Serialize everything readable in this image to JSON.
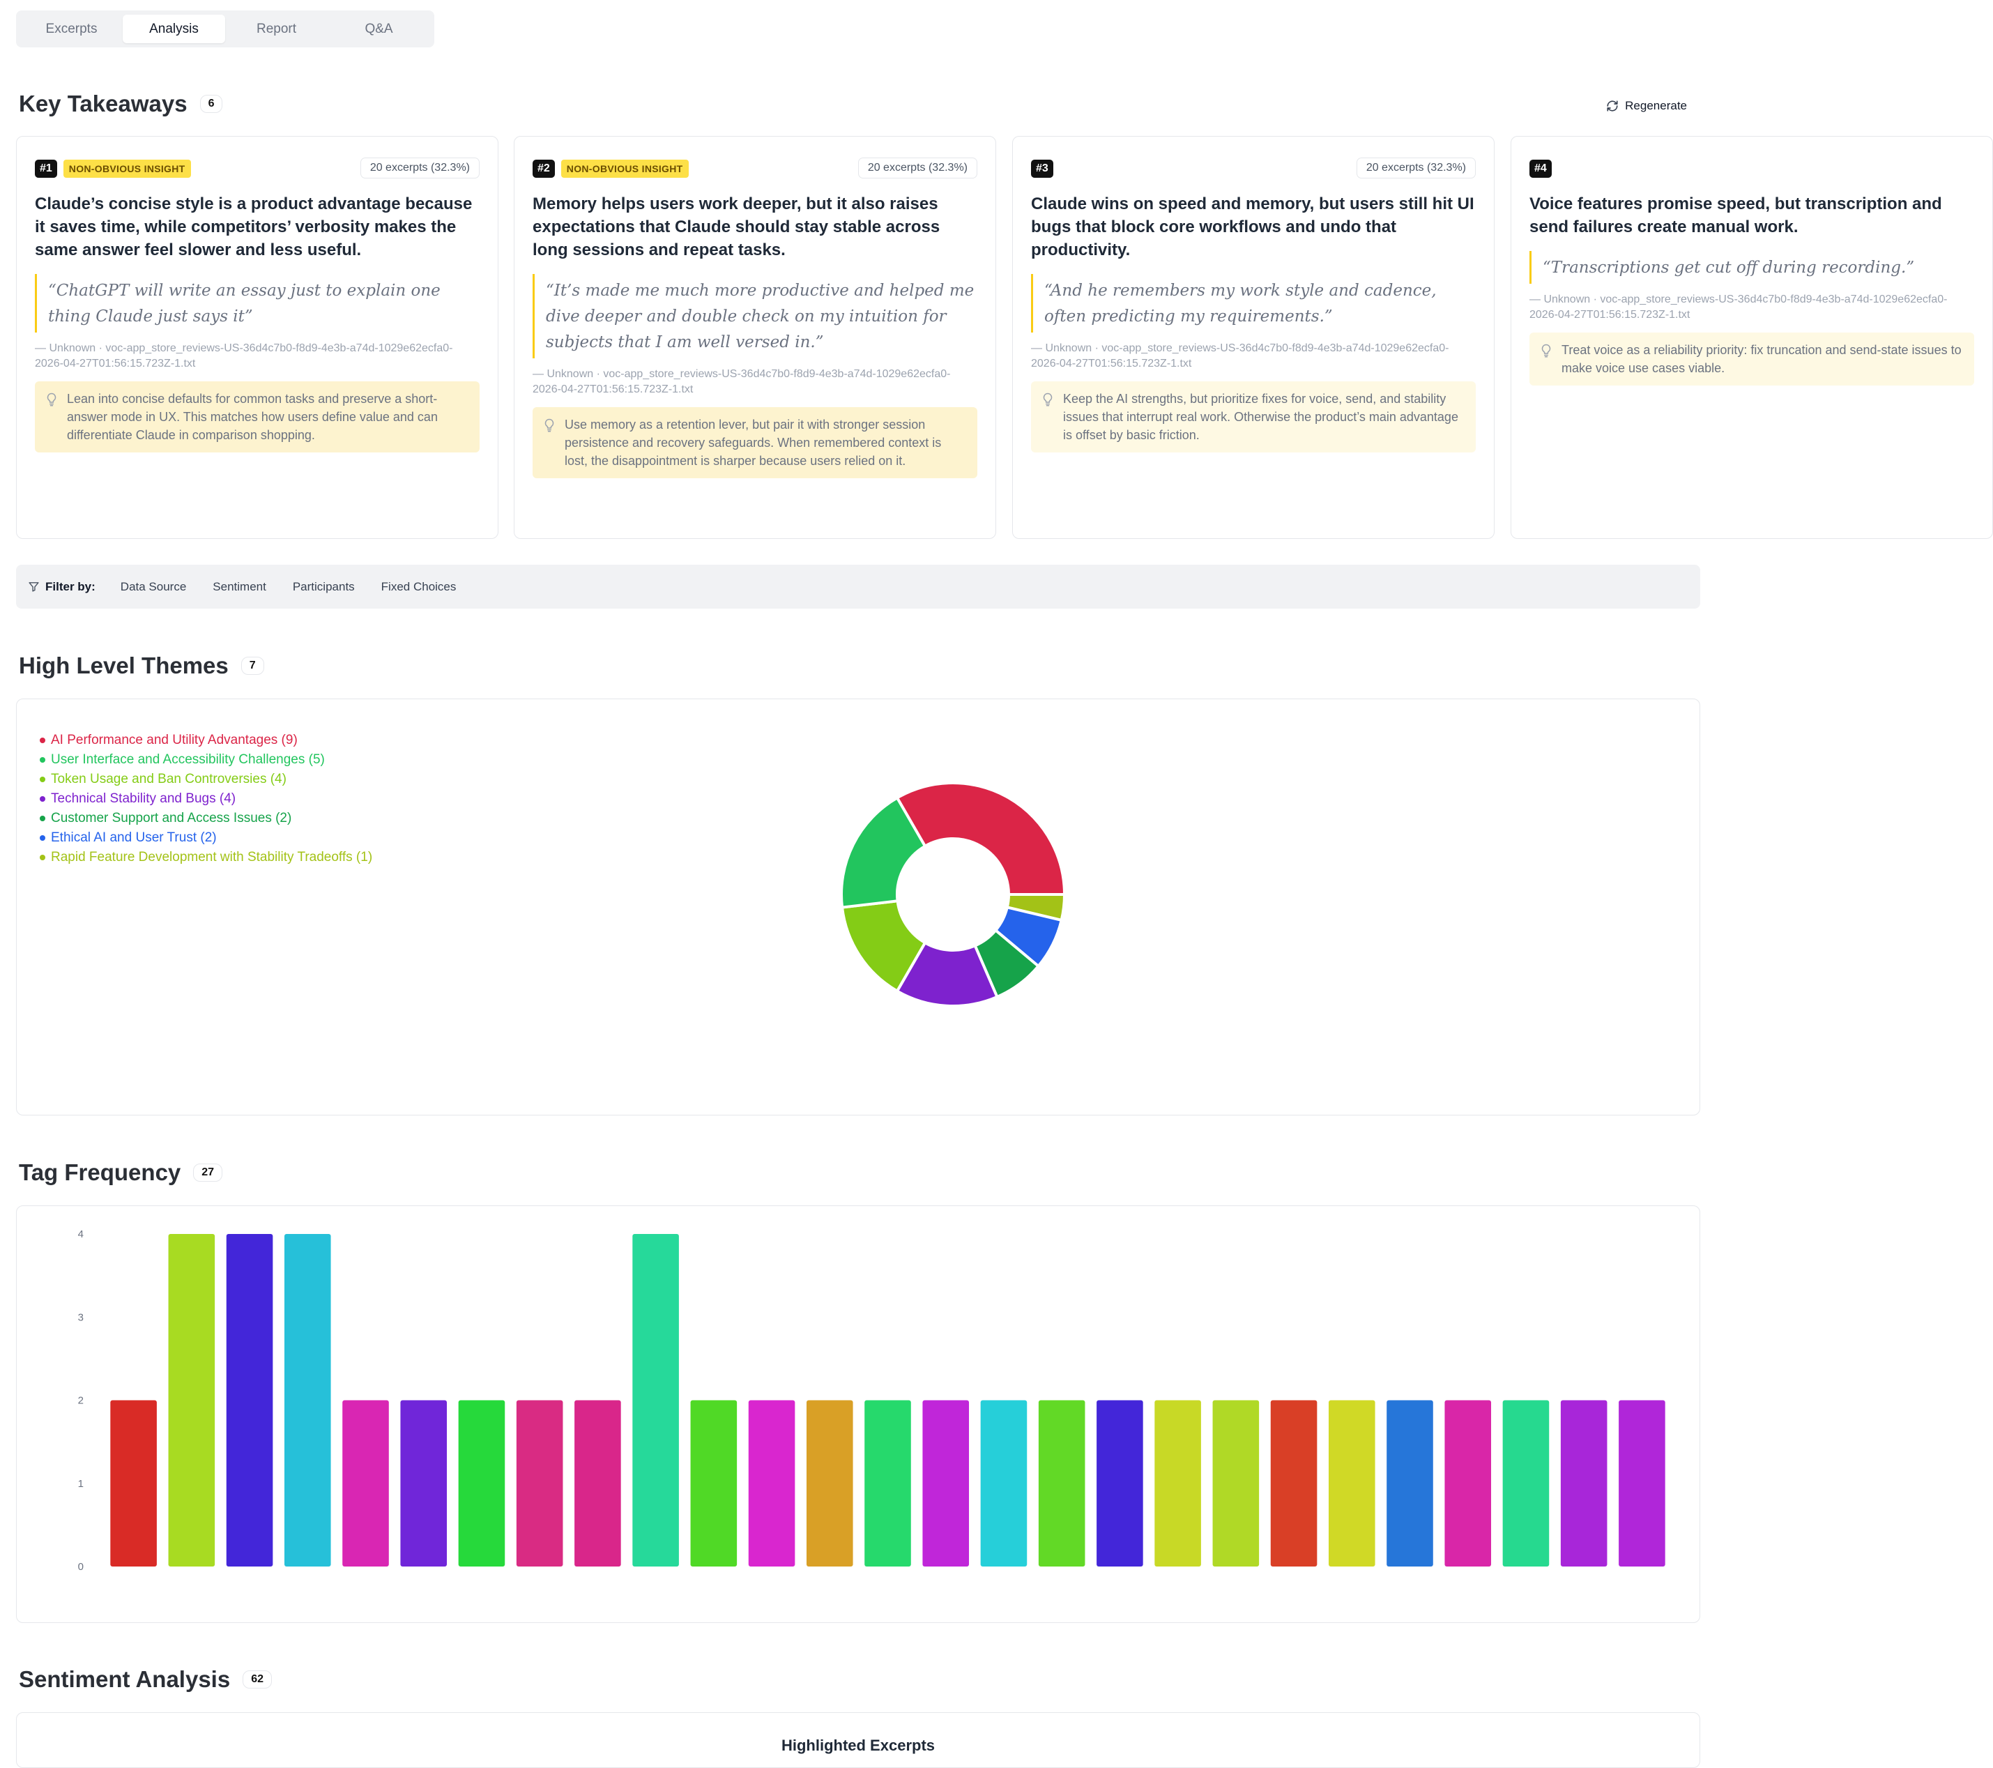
{
  "tabs": [
    {
      "label": "Excerpts",
      "active": false
    },
    {
      "label": "Analysis",
      "active": true
    },
    {
      "label": "Report",
      "active": false
    },
    {
      "label": "Q&A",
      "active": false
    }
  ],
  "key_takeaways": {
    "title": "Key Takeaways",
    "count": "6",
    "regenerate_label": "Regenerate",
    "cards": [
      {
        "number": "#1",
        "tag": "NON-OBVIOUS INSIGHT",
        "excerpts": "20 excerpts (32.3%)",
        "title": "Claude’s concise style is a product advantage because it saves time, while competitors’ verbosity makes the same answer feel slower and less useful.",
        "quote": "“ChatGPT will write an essay just to explain one thing Claude just says it”",
        "source": "— Unknown · voc-app_store_reviews-US-36d4c7b0-f8d9-4e3b-a74d-1029e62ecfa0-2026-04-27T01:56:15.723Z-1.txt",
        "advice": "Lean into concise defaults for common tasks and preserve a short-answer mode in UX. This matches how users define value and can differentiate Claude in comparison shopping."
      },
      {
        "number": "#2",
        "tag": "NON-OBVIOUS INSIGHT",
        "excerpts": "20 excerpts (32.3%)",
        "title": "Memory helps users work deeper, but it also raises expectations that Claude should stay stable across long sessions and repeat tasks.",
        "quote": "“It’s made me much more productive and helped me dive deeper and double check on my intuition for subjects that I am well versed in.”",
        "source": "— Unknown · voc-app_store_reviews-US-36d4c7b0-f8d9-4e3b-a74d-1029e62ecfa0-2026-04-27T01:56:15.723Z-1.txt",
        "advice": "Use memory as a retention lever, but pair it with stronger session persistence and recovery safeguards. When remembered context is lost, the disappointment is sharper because users relied on it."
      },
      {
        "number": "#3",
        "tag": "",
        "excerpts": "20 excerpts (32.3%)",
        "title": "Claude wins on speed and memory, but users still hit UI bugs that block core workflows and undo that productivity.",
        "quote": "“And he remembers my work style and cadence, often predicting my requirements.”",
        "source": "— Unknown · voc-app_store_reviews-US-36d4c7b0-f8d9-4e3b-a74d-1029e62ecfa0-2026-04-27T01:56:15.723Z-1.txt",
        "advice": "Keep the AI strengths, but prioritize fixes for voice, send, and stability issues that interrupt real work. Otherwise the product’s main advantage is offset by basic friction."
      },
      {
        "number": "#4",
        "tag": "",
        "excerpts": "",
        "title": "Voice features promise speed, but transcription and send failures create manual work.",
        "quote": "“Transcriptions get cut off during recording.”",
        "source": "— Unknown · voc-app_store_reviews-US-36d4c7b0-f8d9-4e3b-a74d-1029e62ecfa0-2026-04-27T01:56:15.723Z-1.txt",
        "advice": "Treat voice as a reliability priority: fix truncation and send-state issues to make voice use cases viable."
      }
    ]
  },
  "filter_bar": {
    "label": "Filter by:",
    "items": [
      "Data Source",
      "Sentiment",
      "Participants",
      "Fixed Choices"
    ]
  },
  "high_level_themes": {
    "title": "High Level Themes",
    "count": "7",
    "legend": [
      {
        "label": "AI Performance and Utility Advantages (9)",
        "color": "#db2547"
      },
      {
        "label": "User Interface and Accessibility Challenges (5)",
        "color": "#22c55e"
      },
      {
        "label": "Token Usage and Ban Controversies (4)",
        "color": "#84cc16"
      },
      {
        "label": "Technical Stability and Bugs (4)",
        "color": "#7e22ce"
      },
      {
        "label": "Customer Support and Access Issues (2)",
        "color": "#16a34a"
      },
      {
        "label": "Ethical AI and User Trust (2)",
        "color": "#2563eb"
      },
      {
        "label": "Rapid Feature Development with Stability Tradeoffs (1)",
        "color": "#a3c217"
      }
    ]
  },
  "chart_data": {
    "type": "bar",
    "title": "Tag Frequency",
    "xlabel": "",
    "ylabel": "",
    "ylim": [
      0,
      4
    ],
    "yticks": [
      "0",
      "1",
      "2",
      "3",
      "4"
    ],
    "values": [
      2,
      4,
      4,
      4,
      2,
      2,
      2,
      2,
      2,
      4,
      2,
      2,
      2,
      2,
      2,
      2,
      2,
      2,
      2,
      2,
      2,
      2,
      2,
      2,
      2,
      2,
      2
    ],
    "colors": [
      "#d92b26",
      "#a8db22",
      "#4326d9",
      "#26c0d9",
      "#d926b3",
      "#7026d9",
      "#26d93b",
      "#d92b83",
      "#d9268a",
      "#26d99a",
      "#50d926",
      "#d926cf",
      "#d9a026",
      "#26d96c",
      "#c026d9",
      "#26cfd9",
      "#62d926",
      "#4326d9",
      "#c8d926",
      "#b0d926",
      "#d93f26",
      "#d0d926",
      "#2676d9",
      "#d926a8",
      "#26d98f",
      "#a826d9",
      "#b026d9"
    ],
    "grid": false,
    "legend": "none"
  },
  "tag_frequency": {
    "title": "Tag Frequency",
    "count": "27"
  },
  "sentiment_analysis": {
    "title": "Sentiment Analysis",
    "count": "62",
    "inner_title": "Highlighted Excerpts"
  }
}
